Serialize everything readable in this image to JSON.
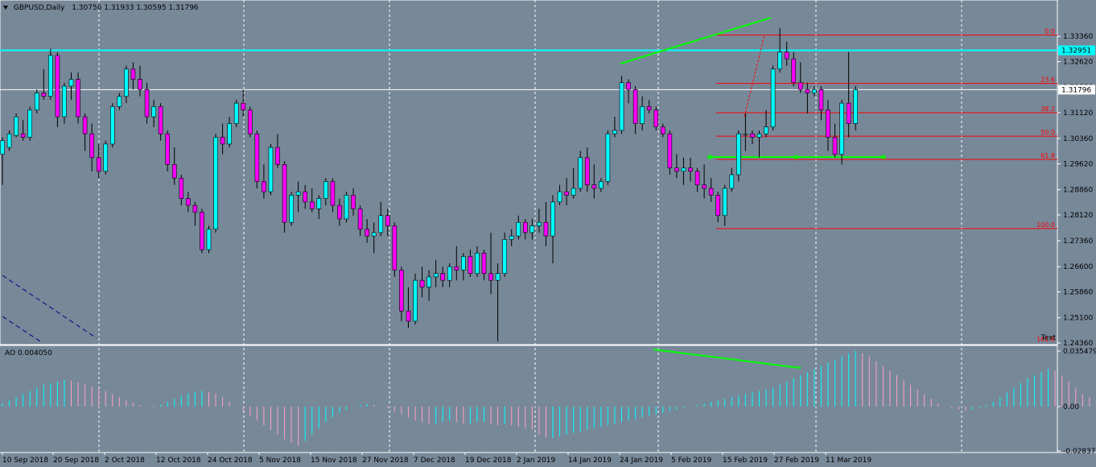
{
  "header": {
    "symbol_tf": "GBPUSD,Daily",
    "ohlc": "1.30756 1.31933 1.30595 1.31796"
  },
  "ao_header": {
    "label": "AO 0.004050"
  },
  "colors": {
    "background": "#778899",
    "grid": "#FFFFFF",
    "bull": "#00FFFF",
    "bear": "#FF00FF",
    "fib": "#FF0000",
    "trend": "#00FF00",
    "hline": "#00FFFF",
    "pinkbar": "#FFA0C8"
  },
  "chart_data": [
    {
      "type": "candlestick",
      "title": "GBPUSD,Daily",
      "ylim": [
        1.2436,
        1.3405
      ],
      "price_ticks": [
        "1.33360",
        "1.32620",
        "1.31880",
        "1.31120",
        "1.30360",
        "1.29620",
        "1.28860",
        "1.28120",
        "1.27360",
        "1.26600",
        "1.25860",
        "1.25100",
        "1.24360"
      ],
      "x_labels": [
        "10 Sep 2018",
        "20 Sep 2018",
        "2 Oct 2018",
        "12 Oct 2018",
        "24 Oct 2018",
        "5 Nov 2018",
        "15 Nov 2018",
        "27 Nov 2018",
        "7 Dec 2018",
        "19 Dec 2018",
        "2 Jan 2019",
        "14 Jan 2019",
        "24 Jan 2019",
        "5 Feb 2019",
        "15 Feb 2019",
        "27 Feb 2019",
        "11 Mar 2019"
      ],
      "price_labels": {
        "hline": "1.32951",
        "current": "1.31796"
      },
      "horizontal_line": 1.32951,
      "current_price": 1.31796,
      "fibonacci": {
        "levels": [
          {
            "label": "0.0",
            "price": 1.334
          },
          {
            "label": "23.6",
            "price": 1.3198
          },
          {
            "label": "38.2",
            "price": 1.3112
          },
          {
            "label": "50.0",
            "price": 1.3043
          },
          {
            "label": "61.8",
            "price": 1.2975
          },
          {
            "label": "100.0",
            "price": 1.2772
          },
          {
            "label": "161.8",
            "price": 1.2436
          }
        ]
      },
      "corner_text": "Text",
      "ohlc": [
        [
          1.299,
          1.304,
          1.29,
          1.303
        ],
        [
          1.301,
          1.306,
          1.3,
          1.305
        ],
        [
          1.3045,
          1.311,
          1.304,
          1.31
        ],
        [
          1.305,
          1.309,
          1.303,
          1.304
        ],
        [
          1.304,
          1.313,
          1.303,
          1.312
        ],
        [
          1.312,
          1.318,
          1.311,
          1.317
        ],
        [
          1.317,
          1.324,
          1.315,
          1.316
        ],
        [
          1.316,
          1.33,
          1.315,
          1.328
        ],
        [
          1.328,
          1.329,
          1.307,
          1.31
        ],
        [
          1.31,
          1.32,
          1.308,
          1.319
        ],
        [
          1.319,
          1.323,
          1.315,
          1.321
        ],
        [
          1.321,
          1.323,
          1.308,
          1.31
        ],
        [
          1.31,
          1.311,
          1.3,
          1.305
        ],
        [
          1.305,
          1.308,
          1.294,
          1.298
        ],
        [
          1.298,
          1.302,
          1.292,
          1.294
        ],
        [
          1.294,
          1.303,
          1.293,
          1.302
        ],
        [
          1.302,
          1.314,
          1.301,
          1.313
        ],
        [
          1.313,
          1.317,
          1.312,
          1.316
        ],
        [
          1.316,
          1.325,
          1.314,
          1.324
        ],
        [
          1.324,
          1.326,
          1.318,
          1.321
        ],
        [
          1.321,
          1.325,
          1.316,
          1.318
        ],
        [
          1.318,
          1.32,
          1.308,
          1.31
        ],
        [
          1.31,
          1.315,
          1.307,
          1.313
        ],
        [
          1.313,
          1.314,
          1.303,
          1.305
        ],
        [
          1.305,
          1.306,
          1.294,
          1.296
        ],
        [
          1.296,
          1.301,
          1.29,
          1.292
        ],
        [
          1.292,
          1.293,
          1.284,
          1.286
        ],
        [
          1.286,
          1.288,
          1.282,
          1.284
        ],
        [
          1.284,
          1.285,
          1.278,
          1.282
        ],
        [
          1.282,
          1.283,
          1.27,
          1.271
        ],
        [
          1.271,
          1.278,
          1.27,
          1.277
        ],
        [
          1.277,
          1.305,
          1.276,
          1.304
        ],
        [
          1.304,
          1.308,
          1.299,
          1.302
        ],
        [
          1.302,
          1.31,
          1.301,
          1.308
        ],
        [
          1.308,
          1.315,
          1.307,
          1.314
        ],
        [
          1.314,
          1.318,
          1.31,
          1.312
        ],
        [
          1.312,
          1.313,
          1.304,
          1.305
        ],
        [
          1.305,
          1.306,
          1.289,
          1.291
        ],
        [
          1.291,
          1.296,
          1.286,
          1.288
        ],
        [
          1.288,
          1.302,
          1.287,
          1.301
        ],
        [
          1.301,
          1.305,
          1.295,
          1.296
        ],
        [
          1.296,
          1.297,
          1.276,
          1.279
        ],
        [
          1.279,
          1.288,
          1.278,
          1.287
        ],
        [
          1.287,
          1.291,
          1.282,
          1.288
        ],
        [
          1.288,
          1.29,
          1.283,
          1.285
        ],
        [
          1.285,
          1.289,
          1.282,
          1.283
        ],
        [
          1.283,
          1.287,
          1.28,
          1.286
        ],
        [
          1.286,
          1.292,
          1.284,
          1.291
        ],
        [
          1.291,
          1.292,
          1.282,
          1.284
        ],
        [
          1.284,
          1.286,
          1.278,
          1.28
        ],
        [
          1.28,
          1.288,
          1.279,
          1.287
        ],
        [
          1.287,
          1.289,
          1.281,
          1.283
        ],
        [
          1.283,
          1.284,
          1.275,
          1.277
        ],
        [
          1.277,
          1.28,
          1.273,
          1.275
        ],
        [
          1.275,
          1.279,
          1.27,
          1.276
        ],
        [
          1.276,
          1.285,
          1.275,
          1.281
        ],
        [
          1.281,
          1.283,
          1.275,
          1.278
        ],
        [
          1.278,
          1.279,
          1.263,
          1.265
        ],
        [
          1.265,
          1.266,
          1.25,
          1.253
        ],
        [
          1.253,
          1.26,
          1.248,
          1.25
        ],
        [
          1.25,
          1.264,
          1.249,
          1.262
        ],
        [
          1.262,
          1.266,
          1.257,
          1.26
        ],
        [
          1.26,
          1.265,
          1.256,
          1.263
        ],
        [
          1.263,
          1.268,
          1.26,
          1.264
        ],
        [
          1.264,
          1.266,
          1.26,
          1.262
        ],
        [
          1.262,
          1.267,
          1.26,
          1.266
        ],
        [
          1.266,
          1.272,
          1.262,
          1.265
        ],
        [
          1.265,
          1.27,
          1.262,
          1.269
        ],
        [
          1.269,
          1.271,
          1.263,
          1.264
        ],
        [
          1.264,
          1.272,
          1.263,
          1.27
        ],
        [
          1.27,
          1.271,
          1.262,
          1.264
        ],
        [
          1.264,
          1.276,
          1.258,
          1.262
        ],
        [
          1.262,
          1.267,
          1.244,
          1.264
        ],
        [
          1.264,
          1.276,
          1.263,
          1.274
        ],
        [
          1.274,
          1.277,
          1.272,
          1.275
        ],
        [
          1.275,
          1.281,
          1.274,
          1.279
        ],
        [
          1.279,
          1.28,
          1.274,
          1.276
        ],
        [
          1.276,
          1.28,
          1.274,
          1.278
        ],
        [
          1.278,
          1.283,
          1.276,
          1.279
        ],
        [
          1.279,
          1.285,
          1.272,
          1.275
        ],
        [
          1.275,
          1.287,
          1.267,
          1.285
        ],
        [
          1.285,
          1.29,
          1.284,
          1.288
        ],
        [
          1.288,
          1.292,
          1.284,
          1.287
        ],
        [
          1.287,
          1.295,
          1.286,
          1.289
        ],
        [
          1.289,
          1.3,
          1.288,
          1.298
        ],
        [
          1.298,
          1.301,
          1.288,
          1.29
        ],
        [
          1.29,
          1.296,
          1.286,
          1.289
        ],
        [
          1.289,
          1.292,
          1.288,
          1.291
        ],
        [
          1.291,
          1.306,
          1.29,
          1.305
        ],
        [
          1.305,
          1.31,
          1.304,
          1.306
        ],
        [
          1.306,
          1.322,
          1.305,
          1.32
        ],
        [
          1.32,
          1.321,
          1.314,
          1.318
        ],
        [
          1.318,
          1.319,
          1.305,
          1.308
        ],
        [
          1.308,
          1.316,
          1.306,
          1.313
        ],
        [
          1.313,
          1.315,
          1.311,
          1.312
        ],
        [
          1.312,
          1.313,
          1.306,
          1.307
        ],
        [
          1.307,
          1.308,
          1.304,
          1.305
        ],
        [
          1.305,
          1.306,
          1.293,
          1.295
        ],
        [
          1.295,
          1.299,
          1.292,
          1.294
        ],
        [
          1.294,
          1.298,
          1.29,
          1.295
        ],
        [
          1.295,
          1.298,
          1.291,
          1.294
        ],
        [
          1.294,
          1.295,
          1.288,
          1.29
        ],
        [
          1.29,
          1.296,
          1.286,
          1.289
        ],
        [
          1.289,
          1.292,
          1.285,
          1.287
        ],
        [
          1.287,
          1.288,
          1.279,
          1.281
        ],
        [
          1.281,
          1.29,
          1.278,
          1.289
        ],
        [
          1.289,
          1.295,
          1.288,
          1.293
        ],
        [
          1.293,
          1.306,
          1.291,
          1.305
        ],
        [
          1.305,
          1.311,
          1.3,
          1.305
        ],
        [
          1.305,
          1.306,
          1.302,
          1.304
        ],
        [
          1.304,
          1.306,
          1.298,
          1.305
        ],
        [
          1.305,
          1.312,
          1.304,
          1.307
        ],
        [
          1.307,
          1.325,
          1.306,
          1.324
        ],
        [
          1.324,
          1.336,
          1.323,
          1.329
        ],
        [
          1.329,
          1.332,
          1.325,
          1.327
        ],
        [
          1.327,
          1.329,
          1.319,
          1.32
        ],
        [
          1.32,
          1.326,
          1.317,
          1.318
        ],
        [
          1.318,
          1.32,
          1.311,
          1.317
        ],
        [
          1.317,
          1.319,
          1.316,
          1.318
        ],
        [
          1.318,
          1.319,
          1.309,
          1.312
        ],
        [
          1.312,
          1.315,
          1.3,
          1.304
        ],
        [
          1.304,
          1.308,
          1.298,
          1.299
        ],
        [
          1.299,
          1.315,
          1.296,
          1.314
        ],
        [
          1.314,
          1.329,
          1.304,
          1.308
        ],
        [
          1.308,
          1.319,
          1.306,
          1.318
        ]
      ]
    },
    {
      "type": "bar",
      "title": "AO 0.004050",
      "ylim": [
        -0.028373,
        0.035479
      ],
      "y_ticks": [
        "0.035479",
        "0.00",
        "-0.028373"
      ],
      "series": [
        {
          "values": [
            0.002,
            0.004,
            0.006,
            0.008,
            0.01,
            0.012,
            0.014,
            0.015,
            0.016,
            0.017,
            0.0165,
            0.0155,
            0.0145,
            0.013,
            0.0115,
            0.01,
            0.008,
            0.006,
            0.004,
            0.0025,
            0.001,
            0.0,
            -0.0005,
            0.001,
            0.003,
            0.005,
            0.007,
            0.0085,
            0.0095,
            0.01,
            0.0095,
            0.0085,
            0.006,
            0.003,
            0.0,
            -0.003,
            -0.006,
            -0.009,
            -0.012,
            -0.015,
            -0.018,
            -0.021,
            -0.023,
            -0.025,
            -0.022,
            -0.018,
            -0.014,
            -0.01,
            -0.007,
            -0.004,
            -0.002,
            0.0,
            0.001,
            0.0015,
            0.001,
            0.0,
            -0.001,
            -0.003,
            -0.005,
            -0.007,
            -0.009,
            -0.01,
            -0.011,
            -0.011,
            -0.01,
            -0.009,
            -0.01,
            -0.011,
            -0.011,
            -0.01,
            -0.01,
            -0.011,
            -0.012,
            -0.011,
            -0.012,
            -0.013,
            -0.014,
            -0.015,
            -0.018,
            -0.02,
            -0.02,
            -0.019,
            -0.018,
            -0.017,
            -0.016,
            -0.015,
            -0.014,
            -0.013,
            -0.012,
            -0.011,
            -0.01,
            -0.009,
            -0.008,
            -0.007,
            -0.006,
            -0.005,
            -0.004,
            -0.003,
            -0.002,
            -0.001,
            0.0,
            0.001,
            0.002,
            0.003,
            0.004,
            0.005,
            0.006,
            0.007,
            0.008,
            0.009,
            0.01,
            0.011,
            0.012,
            0.014,
            0.016,
            0.018,
            0.02,
            0.022,
            0.024,
            0.026,
            0.028,
            0.03,
            0.032,
            0.034,
            0.0355,
            0.034,
            0.032,
            0.029,
            0.026,
            0.023,
            0.02,
            0.017,
            0.014,
            0.011,
            0.008,
            0.005,
            0.002,
            0.0,
            -0.001,
            -0.002,
            -0.0025,
            -0.002,
            -0.001,
            0.001,
            0.003,
            0.006,
            0.009,
            0.012,
            0.015,
            0.018,
            0.02,
            0.022,
            0.024,
            0.023,
            0.02,
            0.016,
            0.012,
            0.008,
            0.006,
            0.005,
            0.0045,
            0.004
          ]
        }
      ]
    }
  ]
}
